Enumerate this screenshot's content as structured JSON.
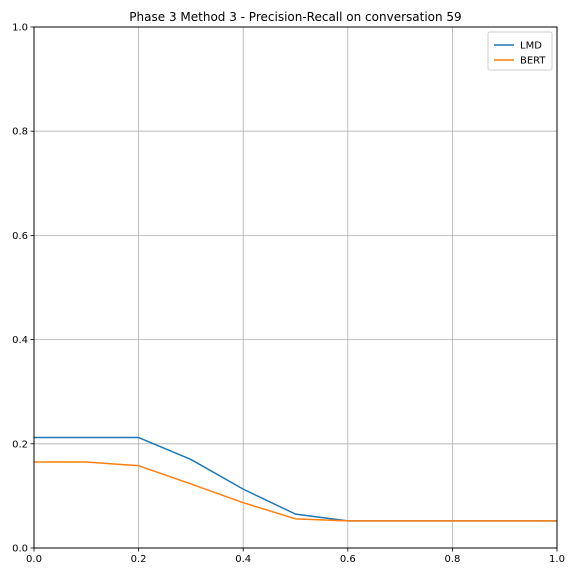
{
  "chart_data": {
    "type": "line",
    "title": "Phase 3 Method 3 - Precision-Recall on conversation 59",
    "xlabel": "",
    "ylabel": "",
    "xlim": [
      0.0,
      1.0
    ],
    "ylim": [
      0.0,
      1.0
    ],
    "grid": true,
    "legend_position": "top-right",
    "xticks": [
      0.0,
      0.2,
      0.4,
      0.6,
      0.8,
      1.0
    ],
    "xtick_labels": [
      "0.0",
      "0.2",
      "0.4",
      "0.6",
      "0.8",
      "1.0"
    ],
    "yticks": [
      0.0,
      0.2,
      0.4,
      0.6,
      0.8,
      1.0
    ],
    "ytick_labels": [
      "0.0",
      "0.2",
      "0.4",
      "0.6",
      "0.8",
      "1.0"
    ],
    "x": [
      0.0,
      0.1,
      0.2,
      0.3,
      0.4,
      0.5,
      0.6,
      0.7,
      0.8,
      0.9,
      1.0
    ],
    "series": [
      {
        "name": "LMD",
        "color": "#1f77b4",
        "values": [
          0.212,
          0.212,
          0.212,
          0.17,
          0.113,
          0.065,
          0.052,
          0.052,
          0.052,
          0.052,
          0.052
        ]
      },
      {
        "name": "BERT",
        "color": "#ff7f0e",
        "values": [
          0.165,
          0.165,
          0.158,
          0.123,
          0.087,
          0.056,
          0.052,
          0.052,
          0.052,
          0.052,
          0.052
        ]
      }
    ]
  }
}
